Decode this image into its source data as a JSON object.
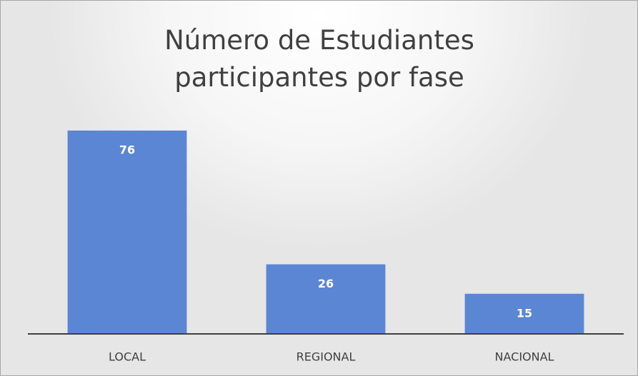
{
  "chart_data": {
    "type": "bar",
    "title": "Número de Estudiantes participantes por fase",
    "categories": [
      "LOCAL",
      "REGIONAL",
      "NACIONAL"
    ],
    "values": [
      76,
      26,
      15
    ],
    "color": "#5b86d4",
    "ylim": [
      0,
      80
    ],
    "yticks": [
      0,
      10,
      20,
      30,
      40,
      50,
      60,
      70,
      80
    ],
    "grid": true
  }
}
